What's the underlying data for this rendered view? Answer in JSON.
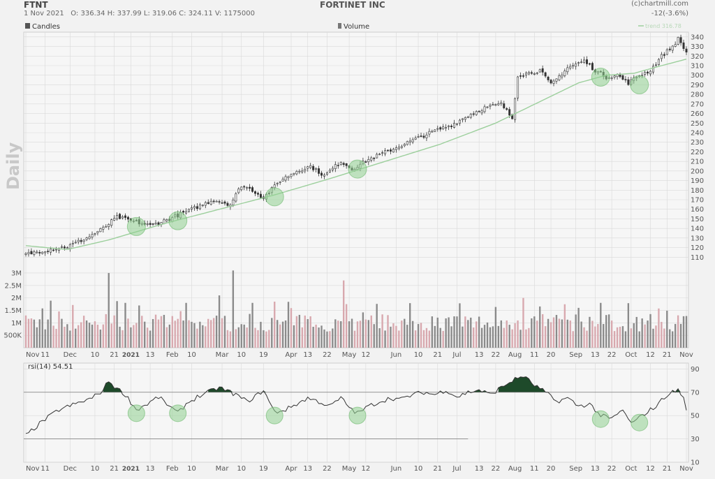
{
  "header": {
    "ticker": "FTNT",
    "date": "1 Nov 2021",
    "ohlcv": "O: 336.34  H: 337.99  L: 319.06  C: 324.11   V: 1175000",
    "company": "FORTINET INC",
    "source": "(c)chartmill.com",
    "change": "-12(-3.6%)"
  },
  "labels": {
    "timeframe": "Daily",
    "candles_legend": "Candles",
    "volume_legend": "Volume",
    "trend_legend": "trend 316.78",
    "rsi_legend": "rsi(14) 54.51"
  },
  "colors": {
    "background": "#f2f2f2",
    "plot_background": "#f6f6f6",
    "grid": "#d9d9d9",
    "candle": "#333333",
    "trend_line": "#9ccf9c",
    "volume_up": "#8a8a8a",
    "volume_down": "#d8a8ae",
    "rsi_line": "#333333",
    "rsi_fill": "#1e4a2a",
    "highlight": "#8fd08f"
  },
  "chart_data": [
    {
      "type": "candlestick",
      "name": "price",
      "ylim": [
        100,
        345
      ],
      "yticks": [
        110,
        120,
        130,
        140,
        150,
        160,
        170,
        180,
        190,
        200,
        210,
        220,
        230,
        240,
        250,
        260,
        270,
        280,
        290,
        300,
        310,
        320,
        330,
        340
      ],
      "x_tick_labels": [
        "Nov",
        "11",
        "Dec",
        "10",
        "21",
        "2021",
        "13",
        "Feb",
        "10",
        "Mar",
        "10",
        "19",
        "Apr",
        "13",
        "22",
        "May",
        "12",
        "Jun",
        "10",
        "21",
        "Jul",
        "13",
        "22",
        "Aug",
        "11",
        "20",
        "Sep",
        "13",
        "22",
        "Oct",
        "12",
        "21",
        "Nov"
      ],
      "close_anchors": [
        [
          0,
          113
        ],
        [
          8,
          118
        ],
        [
          15,
          121
        ],
        [
          22,
          130
        ],
        [
          28,
          140
        ],
        [
          33,
          152
        ],
        [
          38,
          148
        ],
        [
          45,
          143
        ],
        [
          52,
          150
        ],
        [
          60,
          160
        ],
        [
          68,
          170
        ],
        [
          74,
          165
        ],
        [
          78,
          185
        ],
        [
          82,
          180
        ],
        [
          86,
          172
        ],
        [
          92,
          190
        ],
        [
          98,
          200
        ],
        [
          103,
          205
        ],
        [
          108,
          195
        ],
        [
          114,
          210
        ],
        [
          118,
          202
        ],
        [
          124,
          212
        ],
        [
          132,
          222
        ],
        [
          140,
          232
        ],
        [
          148,
          242
        ],
        [
          154,
          248
        ],
        [
          160,
          258
        ],
        [
          166,
          266
        ],
        [
          172,
          270
        ],
        [
          176,
          255
        ],
        [
          178,
          300
        ],
        [
          186,
          305
        ],
        [
          190,
          290
        ],
        [
          196,
          308
        ],
        [
          202,
          315
        ],
        [
          206,
          305
        ],
        [
          210,
          298
        ],
        [
          214,
          300
        ],
        [
          218,
          292
        ],
        [
          222,
          300
        ],
        [
          226,
          305
        ],
        [
          230,
          320
        ],
        [
          234,
          330
        ],
        [
          236,
          338
        ],
        [
          239,
          324.11
        ]
      ],
      "trend_anchors": [
        [
          0,
          122
        ],
        [
          15,
          118
        ],
        [
          30,
          128
        ],
        [
          50,
          145
        ],
        [
          70,
          160
        ],
        [
          90,
          175
        ],
        [
          110,
          192
        ],
        [
          130,
          210
        ],
        [
          150,
          228
        ],
        [
          170,
          250
        ],
        [
          190,
          278
        ],
        [
          200,
          292
        ],
        [
          210,
          300
        ],
        [
          220,
          302
        ],
        [
          230,
          310
        ],
        [
          239,
          316.78
        ]
      ],
      "highlights": [
        [
          40,
          142
        ],
        [
          55,
          148
        ],
        [
          90,
          173
        ],
        [
          120,
          202
        ],
        [
          208,
          298
        ],
        [
          222,
          290
        ]
      ]
    },
    {
      "type": "bar",
      "name": "volume",
      "ylim": [
        0,
        3000000
      ],
      "ytick_labels": [
        "3M",
        "2.5M",
        "2M",
        "1.5M",
        "1M",
        "500K"
      ],
      "ytick_values": [
        3000000,
        2500000,
        2000000,
        1500000,
        1000000,
        500000
      ],
      "spikes": [
        [
          30,
          3000000
        ],
        [
          75,
          3100000
        ],
        [
          115,
          2700000
        ],
        [
          180,
          2000000
        ],
        [
          36,
          1800000
        ],
        [
          58,
          1800000
        ],
        [
          70,
          2100000
        ],
        [
          82,
          1800000
        ],
        [
          200,
          1600000
        ],
        [
          208,
          1800000
        ],
        [
          236,
          1300000
        ]
      ]
    },
    {
      "type": "line",
      "name": "rsi",
      "ylim": [
        10,
        95
      ],
      "ytick_labels": [
        "90",
        "70",
        "50",
        "30",
        "10"
      ],
      "ytick_values": [
        90,
        70,
        50,
        30,
        10
      ],
      "overbought": 70,
      "oversold": 30,
      "rsi_anchors": [
        [
          0,
          33
        ],
        [
          6,
          45
        ],
        [
          12,
          55
        ],
        [
          18,
          60
        ],
        [
          24,
          65
        ],
        [
          28,
          72
        ],
        [
          30,
          80
        ],
        [
          32,
          75
        ],
        [
          36,
          68
        ],
        [
          40,
          55
        ],
        [
          44,
          60
        ],
        [
          48,
          66
        ],
        [
          52,
          58
        ],
        [
          55,
          52
        ],
        [
          58,
          60
        ],
        [
          62,
          66
        ],
        [
          66,
          70
        ],
        [
          70,
          74
        ],
        [
          74,
          70
        ],
        [
          76,
          68
        ],
        [
          80,
          62
        ],
        [
          84,
          68
        ],
        [
          86,
          72
        ],
        [
          88,
          62
        ],
        [
          90,
          53
        ],
        [
          94,
          55
        ],
        [
          98,
          60
        ],
        [
          102,
          65
        ],
        [
          106,
          62
        ],
        [
          110,
          58
        ],
        [
          114,
          65
        ],
        [
          118,
          55
        ],
        [
          120,
          52
        ],
        [
          124,
          58
        ],
        [
          128,
          62
        ],
        [
          132,
          65
        ],
        [
          136,
          64
        ],
        [
          140,
          68
        ],
        [
          144,
          70
        ],
        [
          148,
          68
        ],
        [
          152,
          72
        ],
        [
          156,
          66
        ],
        [
          160,
          70
        ],
        [
          164,
          72
        ],
        [
          168,
          68
        ],
        [
          172,
          74
        ],
        [
          176,
          80
        ],
        [
          180,
          84
        ],
        [
          184,
          76
        ],
        [
          188,
          70
        ],
        [
          192,
          62
        ],
        [
          196,
          65
        ],
        [
          200,
          58
        ],
        [
          204,
          60
        ],
        [
          208,
          50
        ],
        [
          212,
          47
        ],
        [
          216,
          55
        ],
        [
          218,
          46
        ],
        [
          220,
          44
        ],
        [
          224,
          52
        ],
        [
          228,
          58
        ],
        [
          232,
          68
        ],
        [
          236,
          72
        ],
        [
          238,
          65
        ],
        [
          239,
          54.51
        ]
      ],
      "highlights": [
        [
          40,
          52
        ],
        [
          55,
          52
        ],
        [
          90,
          50
        ],
        [
          120,
          50
        ],
        [
          208,
          47
        ],
        [
          222,
          44
        ]
      ]
    }
  ]
}
